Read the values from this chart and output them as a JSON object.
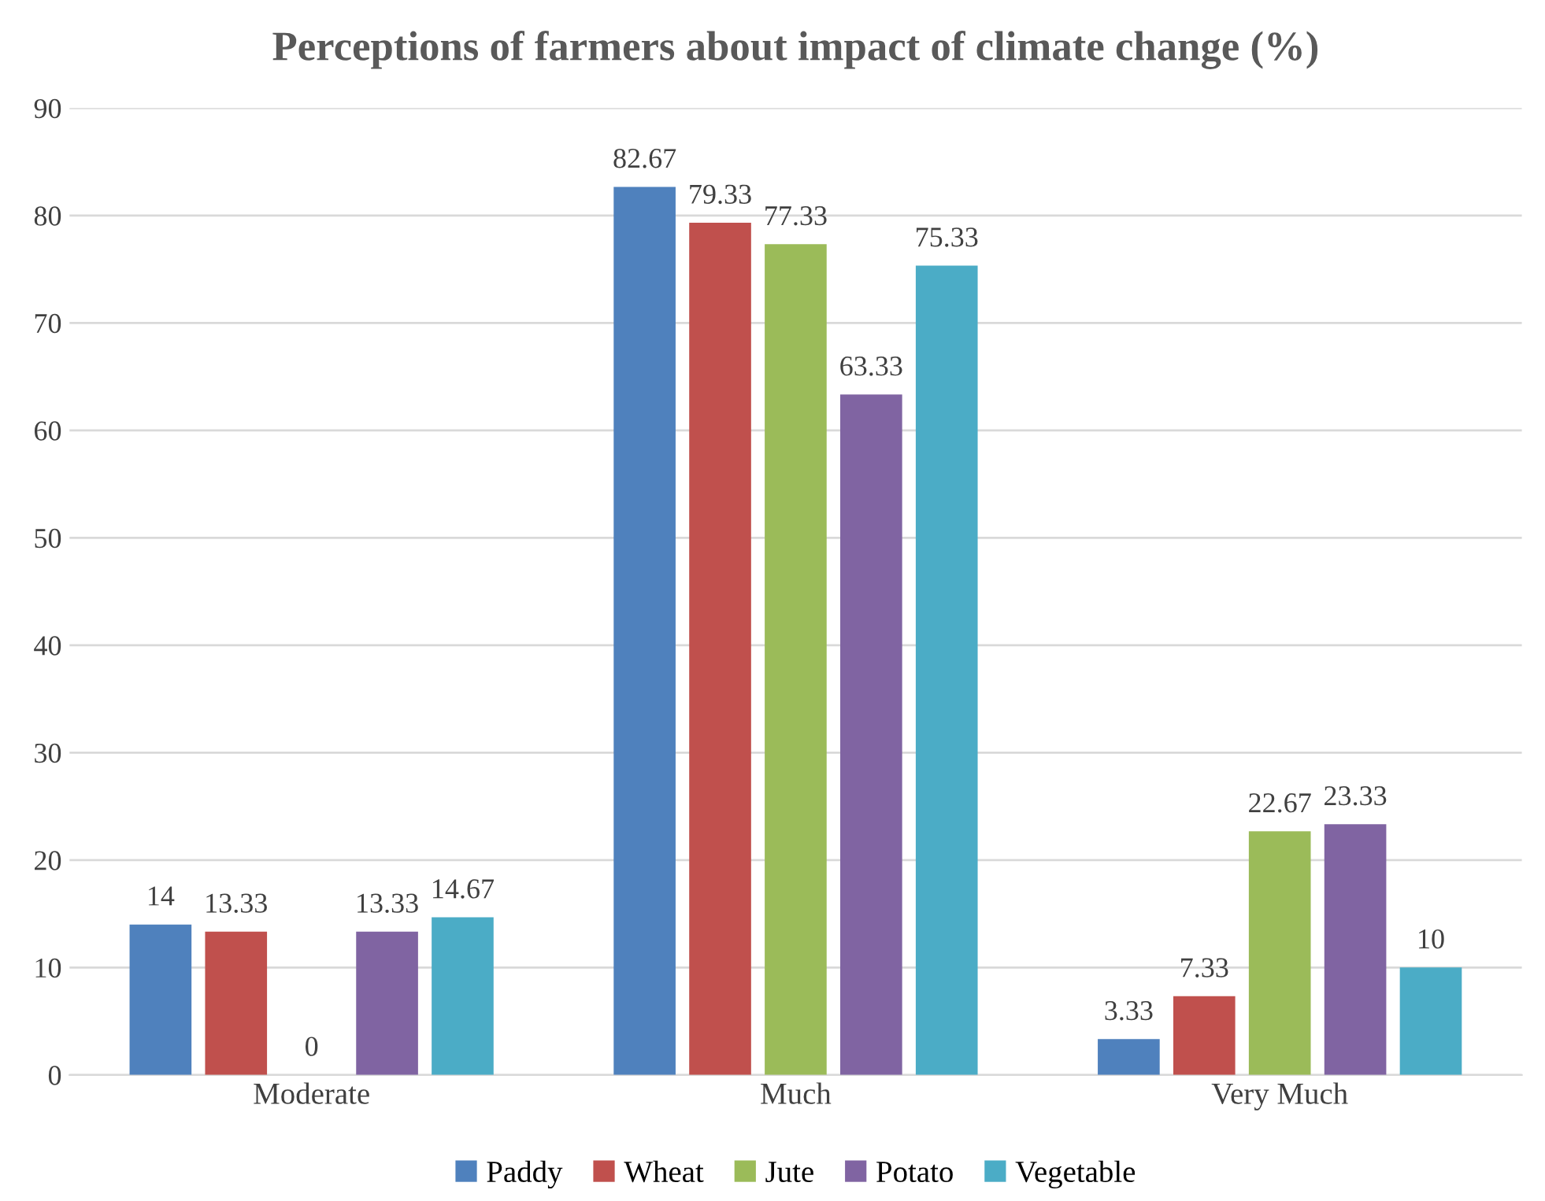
{
  "chart_data": {
    "type": "bar",
    "title": "Perceptions of farmers about impact of climate change (%)",
    "categories": [
      "Moderate",
      "Much",
      "Very Much"
    ],
    "series": [
      {
        "name": "Paddy",
        "color": "#4f81bd",
        "values": [
          14,
          82.67,
          3.33
        ]
      },
      {
        "name": "Wheat",
        "color": "#c0504d",
        "values": [
          13.33,
          79.33,
          7.33
        ]
      },
      {
        "name": "Jute",
        "color": "#9bbb59",
        "values": [
          0,
          77.33,
          22.67
        ]
      },
      {
        "name": "Potato",
        "color": "#8064a2",
        "values": [
          13.33,
          63.33,
          23.33
        ]
      },
      {
        "name": "Vegetable",
        "color": "#4bacc6",
        "values": [
          14.67,
          75.33,
          10
        ]
      }
    ],
    "ylim": [
      0,
      90
    ],
    "yticks": [
      0,
      10,
      20,
      30,
      40,
      50,
      60,
      70,
      80,
      90
    ],
    "grid": "y",
    "legend": "bottom",
    "data_labels": true
  }
}
